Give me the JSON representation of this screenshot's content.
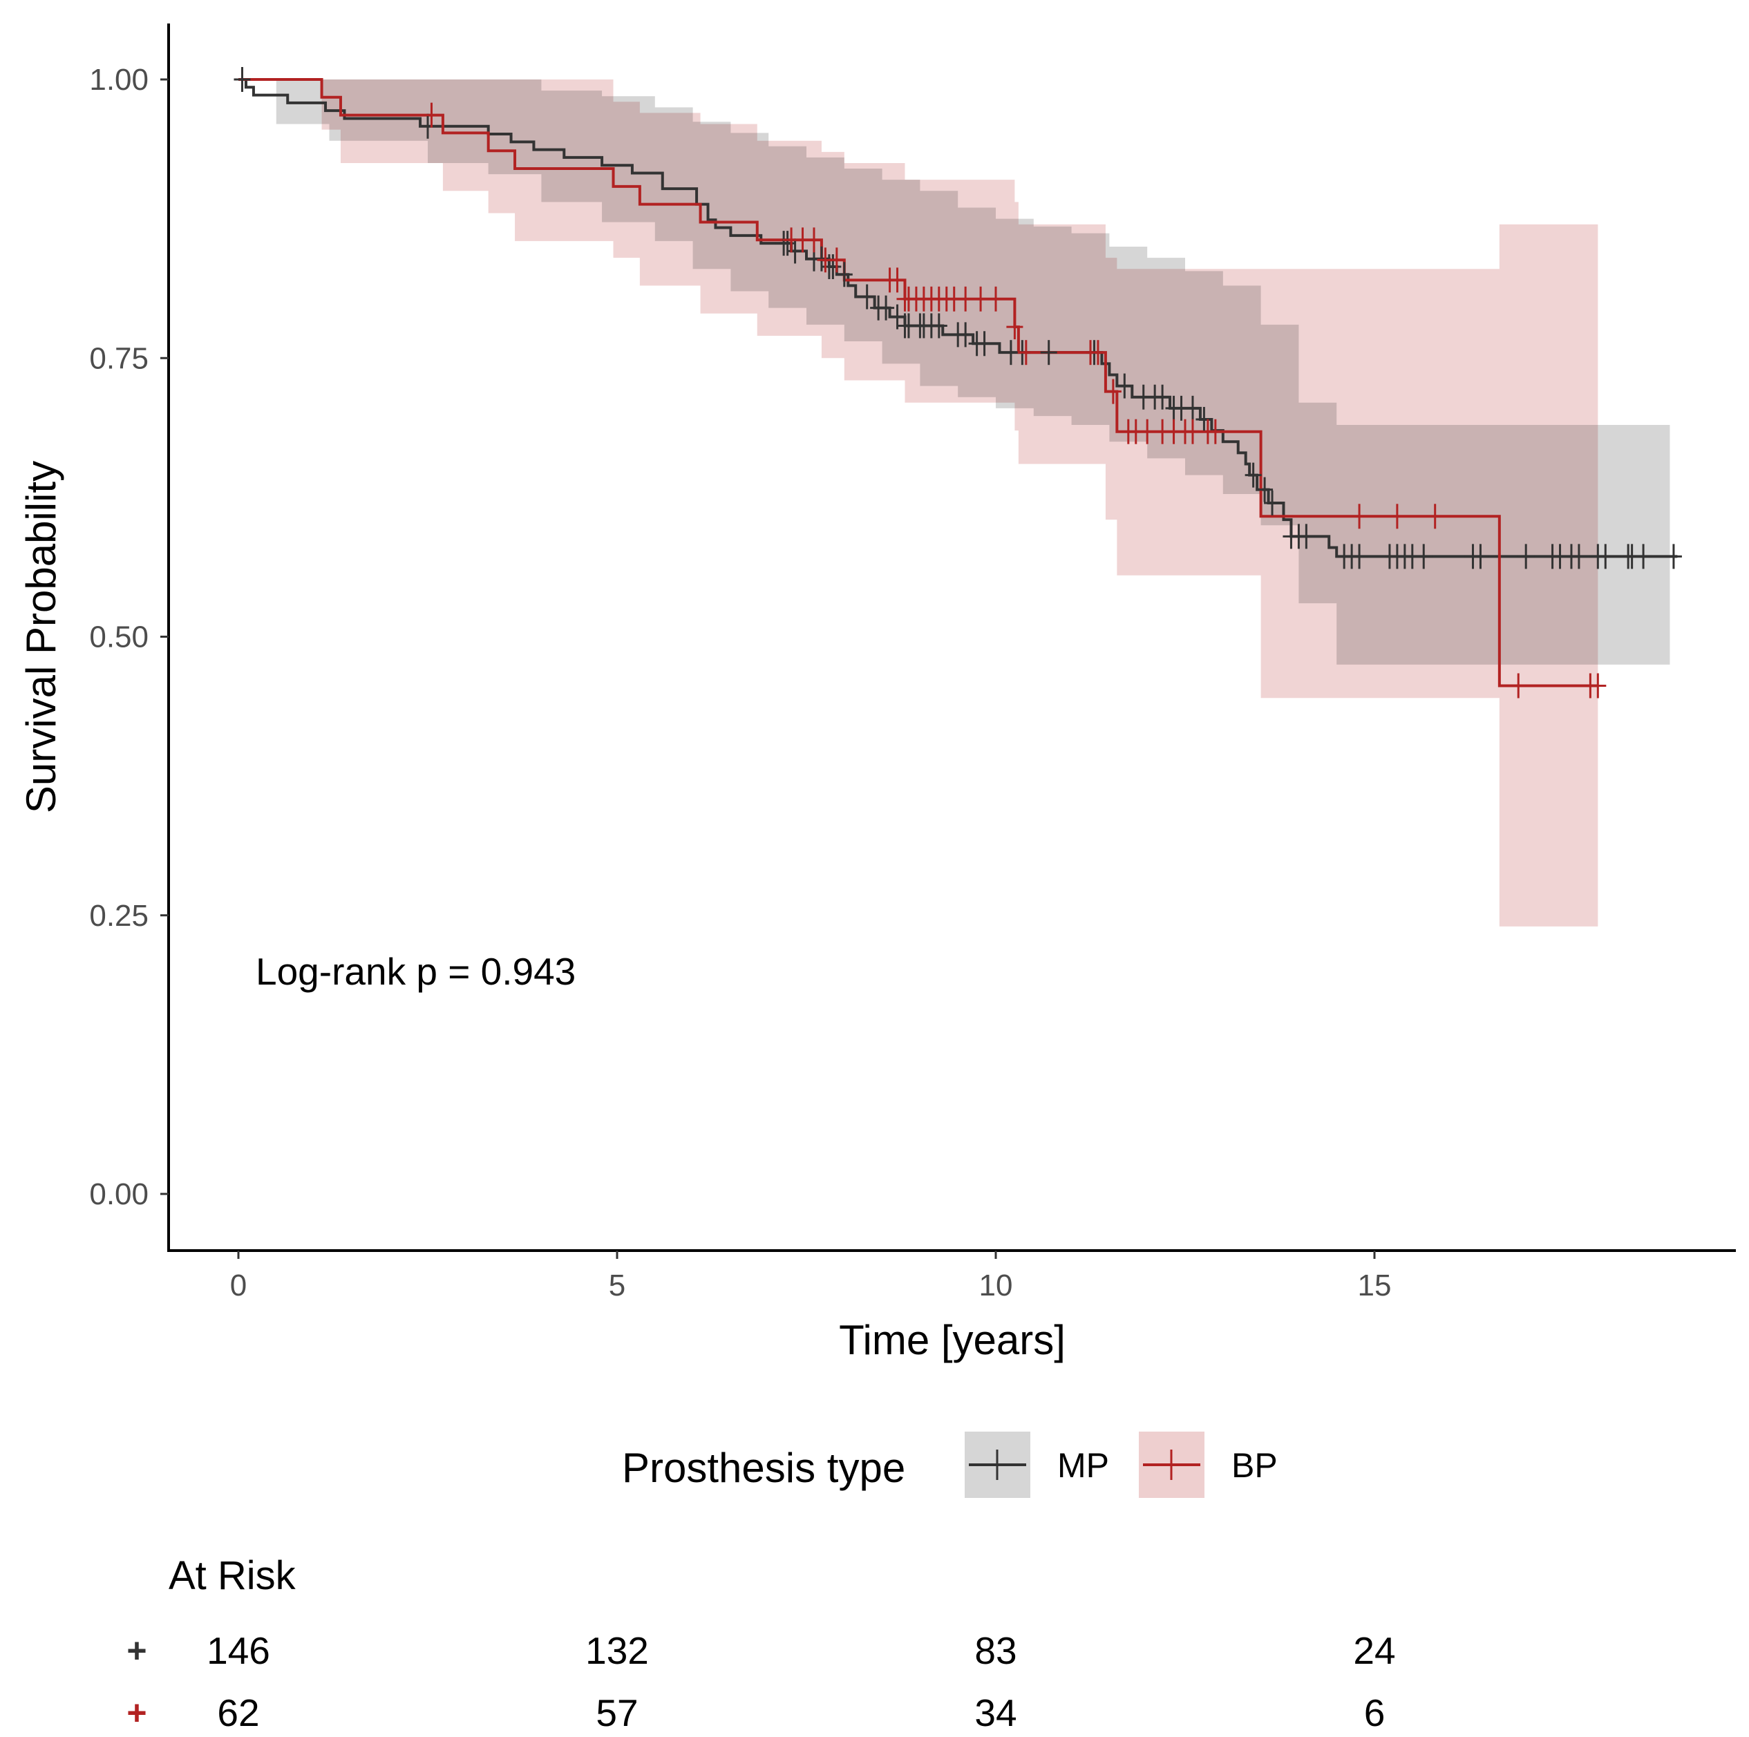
{
  "chart_data": {
    "type": "line",
    "subtype": "kaplan-meier",
    "xlabel": "Time [years]",
    "ylabel": "Survival Probability",
    "xlim": [
      -0.95,
      19.7
    ],
    "ylim": [
      -0.05,
      1.05
    ],
    "x_ticks": [
      0,
      5,
      10,
      15
    ],
    "y_ticks": [
      0.0,
      0.25,
      0.5,
      0.75,
      1.0
    ],
    "y_tick_labels": [
      "0.00",
      "0.25",
      "0.50",
      "0.75",
      "1.00"
    ],
    "grid": false,
    "annotation": "Log-rank p = 0.943",
    "legend": {
      "title": "Prosthesis type",
      "position": "bottom"
    },
    "series": [
      {
        "name": "MP",
        "color": "#333333",
        "band_color": "#d6d6d6",
        "steps": [
          [
            0,
            1.0
          ],
          [
            0.1,
            0.993
          ],
          [
            0.2,
            0.986
          ],
          [
            0.65,
            0.979
          ],
          [
            1.15,
            0.972
          ],
          [
            1.4,
            0.965
          ],
          [
            1.8,
            0.965
          ],
          [
            2.4,
            0.958
          ],
          [
            3.3,
            0.951
          ],
          [
            3.6,
            0.944
          ],
          [
            3.9,
            0.937
          ],
          [
            4.3,
            0.93
          ],
          [
            4.8,
            0.923
          ],
          [
            5.2,
            0.916
          ],
          [
            5.6,
            0.902
          ],
          [
            6.05,
            0.888
          ],
          [
            6.2,
            0.874
          ],
          [
            6.3,
            0.867
          ],
          [
            6.5,
            0.86
          ],
          [
            6.9,
            0.853
          ],
          [
            7.3,
            0.846
          ],
          [
            7.5,
            0.839
          ],
          [
            7.8,
            0.832
          ],
          [
            7.9,
            0.825
          ],
          [
            8.05,
            0.815
          ],
          [
            8.15,
            0.805
          ],
          [
            8.4,
            0.795
          ],
          [
            8.6,
            0.787
          ],
          [
            8.8,
            0.779
          ],
          [
            9.3,
            0.771
          ],
          [
            9.7,
            0.763
          ],
          [
            10.05,
            0.755
          ],
          [
            11.4,
            0.745
          ],
          [
            11.5,
            0.735
          ],
          [
            11.6,
            0.725
          ],
          [
            11.8,
            0.715
          ],
          [
            12.3,
            0.705
          ],
          [
            12.7,
            0.695
          ],
          [
            12.85,
            0.685
          ],
          [
            13.0,
            0.675
          ],
          [
            13.2,
            0.665
          ],
          [
            13.3,
            0.655
          ],
          [
            13.35,
            0.645
          ],
          [
            13.45,
            0.632
          ],
          [
            13.6,
            0.62
          ],
          [
            13.8,
            0.605
          ],
          [
            13.9,
            0.59
          ],
          [
            14.4,
            0.58
          ],
          [
            14.5,
            0.572
          ],
          [
            19.0,
            0.572
          ]
        ],
        "ci": [
          [
            0,
            1.0,
            1.0
          ],
          [
            0.5,
            0.96,
            1.0
          ],
          [
            1.2,
            0.945,
            1.0
          ],
          [
            2.5,
            0.925,
            1.0
          ],
          [
            3.3,
            0.915,
            1.0
          ],
          [
            4.0,
            0.89,
            0.99
          ],
          [
            4.8,
            0.872,
            0.985
          ],
          [
            5.5,
            0.855,
            0.975
          ],
          [
            6.0,
            0.83,
            0.962
          ],
          [
            6.5,
            0.81,
            0.952
          ],
          [
            7.0,
            0.795,
            0.94
          ],
          [
            7.5,
            0.78,
            0.93
          ],
          [
            8.0,
            0.765,
            0.92
          ],
          [
            8.5,
            0.745,
            0.91
          ],
          [
            9.0,
            0.725,
            0.9
          ],
          [
            9.5,
            0.715,
            0.885
          ],
          [
            10.0,
            0.705,
            0.875
          ],
          [
            10.5,
            0.698,
            0.868
          ],
          [
            11.0,
            0.69,
            0.862
          ],
          [
            11.5,
            0.675,
            0.85
          ],
          [
            12.0,
            0.66,
            0.84
          ],
          [
            12.5,
            0.645,
            0.828
          ],
          [
            13.0,
            0.628,
            0.815
          ],
          [
            13.5,
            0.6,
            0.78
          ],
          [
            14.0,
            0.53,
            0.71
          ],
          [
            14.5,
            0.475,
            0.69
          ],
          [
            18.9,
            0.475,
            0.69
          ]
        ],
        "censor_times": [
          0.05,
          2.5,
          7.2,
          7.25,
          7.35,
          7.6,
          7.7,
          7.8,
          7.85,
          8.0,
          8.3,
          8.45,
          8.55,
          8.7,
          8.8,
          8.85,
          9.0,
          9.05,
          9.15,
          9.25,
          9.5,
          9.6,
          9.75,
          9.85,
          10.2,
          10.35,
          10.7,
          11.3,
          11.7,
          11.95,
          12.1,
          12.2,
          12.35,
          12.45,
          12.6,
          12.75,
          13.4,
          13.55,
          13.65,
          13.9,
          14.0,
          14.1,
          14.6,
          14.7,
          14.8,
          15.2,
          15.3,
          15.4,
          15.5,
          15.65,
          16.3,
          16.4,
          17.0,
          17.35,
          17.45,
          17.6,
          17.7,
          17.95,
          18.05,
          18.35,
          18.4,
          18.55,
          18.95
        ],
        "at_risk": [
          146,
          132,
          83,
          24
        ]
      },
      {
        "name": "BP",
        "color": "#b22222",
        "band_color": "#eecfcf",
        "steps": [
          [
            0,
            1.0
          ],
          [
            1.1,
            0.984
          ],
          [
            1.35,
            0.968
          ],
          [
            2.7,
            0.952
          ],
          [
            3.3,
            0.936
          ],
          [
            3.65,
            0.92
          ],
          [
            4.95,
            0.904
          ],
          [
            5.3,
            0.888
          ],
          [
            6.1,
            0.872
          ],
          [
            6.85,
            0.856
          ],
          [
            7.7,
            0.838
          ],
          [
            8.0,
            0.82
          ],
          [
            8.8,
            0.803
          ],
          [
            10.25,
            0.778
          ],
          [
            10.3,
            0.755
          ],
          [
            11.45,
            0.72
          ],
          [
            11.6,
            0.684
          ],
          [
            13.5,
            0.608
          ],
          [
            16.65,
            0.456
          ],
          [
            17.95,
            0.456
          ]
        ],
        "ci": [
          [
            0,
            1.0,
            1.0
          ],
          [
            1.1,
            0.955,
            1.0
          ],
          [
            1.35,
            0.925,
            1.0
          ],
          [
            2.7,
            0.9,
            1.0
          ],
          [
            3.3,
            0.88,
            1.0
          ],
          [
            3.65,
            0.855,
            1.0
          ],
          [
            4.95,
            0.84,
            0.98
          ],
          [
            5.3,
            0.815,
            0.97
          ],
          [
            6.1,
            0.79,
            0.96
          ],
          [
            6.85,
            0.77,
            0.945
          ],
          [
            7.7,
            0.75,
            0.935
          ],
          [
            8.0,
            0.73,
            0.925
          ],
          [
            8.8,
            0.71,
            0.91
          ],
          [
            10.25,
            0.685,
            0.89
          ],
          [
            10.3,
            0.655,
            0.87
          ],
          [
            11.45,
            0.605,
            0.84
          ],
          [
            11.6,
            0.555,
            0.83
          ],
          [
            13.5,
            0.445,
            0.83
          ],
          [
            16.65,
            0.24,
            0.87
          ],
          [
            17.95,
            0.24,
            0.87
          ]
        ],
        "censor_times": [
          2.55,
          7.3,
          7.45,
          7.6,
          7.75,
          7.9,
          8.6,
          8.7,
          8.8,
          8.85,
          8.95,
          9.05,
          9.15,
          9.25,
          9.35,
          9.45,
          9.6,
          9.8,
          10.0,
          10.25,
          10.4,
          11.25,
          11.35,
          11.55,
          11.75,
          11.85,
          12.0,
          12.2,
          12.35,
          12.5,
          12.6,
          12.8,
          12.9,
          14.8,
          15.3,
          15.8,
          16.9,
          17.85,
          17.95
        ],
        "at_risk": [
          62,
          57,
          34,
          6
        ]
      }
    ],
    "at_risk_title": "At Risk",
    "at_risk_times": [
      0,
      5,
      10,
      15
    ]
  }
}
